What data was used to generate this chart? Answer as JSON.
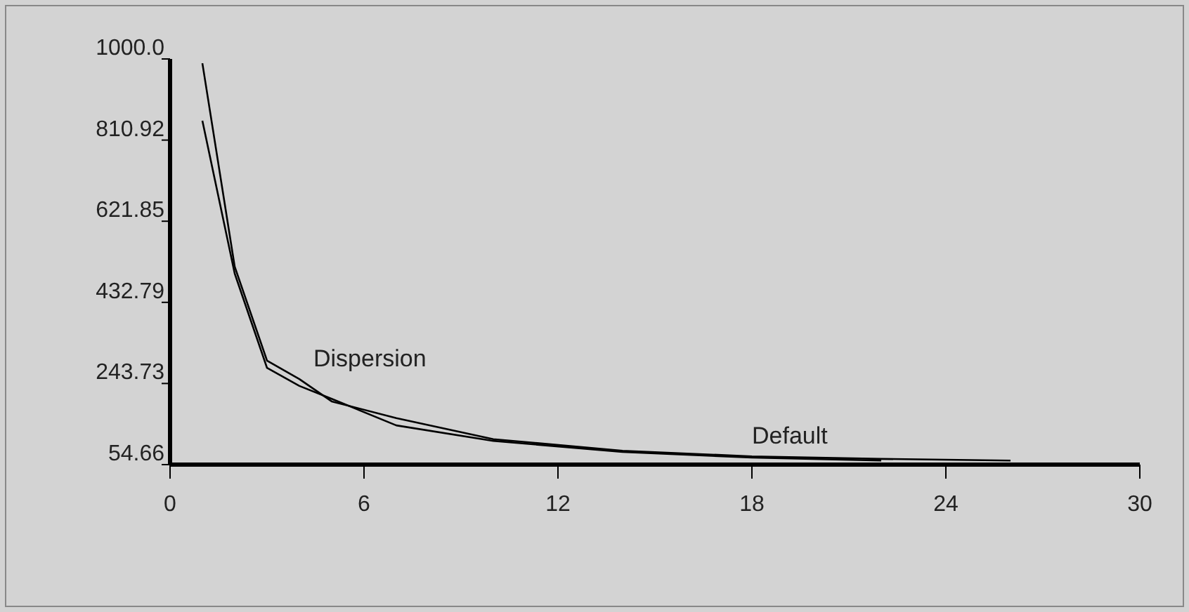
{
  "chart_data": {
    "type": "line",
    "series": [
      {
        "name": "Dispersion",
        "color": "#000000",
        "x": [
          1,
          2,
          3,
          4,
          5,
          7,
          10,
          14,
          18,
          22
        ],
        "values": [
          856,
          500,
          280,
          238,
          208,
          146,
          110,
          84,
          71,
          64
        ]
      },
      {
        "name": "Default",
        "color": "#000000",
        "x": [
          1,
          2,
          3,
          4,
          5,
          7,
          10,
          14,
          18,
          22,
          26
        ],
        "values": [
          990,
          516,
          297,
          254,
          202,
          163,
          114,
          87,
          74,
          68,
          64
        ]
      }
    ],
    "xlim": [
      0,
      30
    ],
    "xticks": [
      0,
      6,
      12,
      18,
      24,
      30
    ],
    "ylim": [
      54.66,
      1000
    ],
    "yticks": [
      54.66,
      243.73,
      432.79,
      621.85,
      810.92,
      {
        "value": 1000,
        "label": "1000.0"
      }
    ],
    "grid": false,
    "marker": "none",
    "line_style": "solid"
  }
}
